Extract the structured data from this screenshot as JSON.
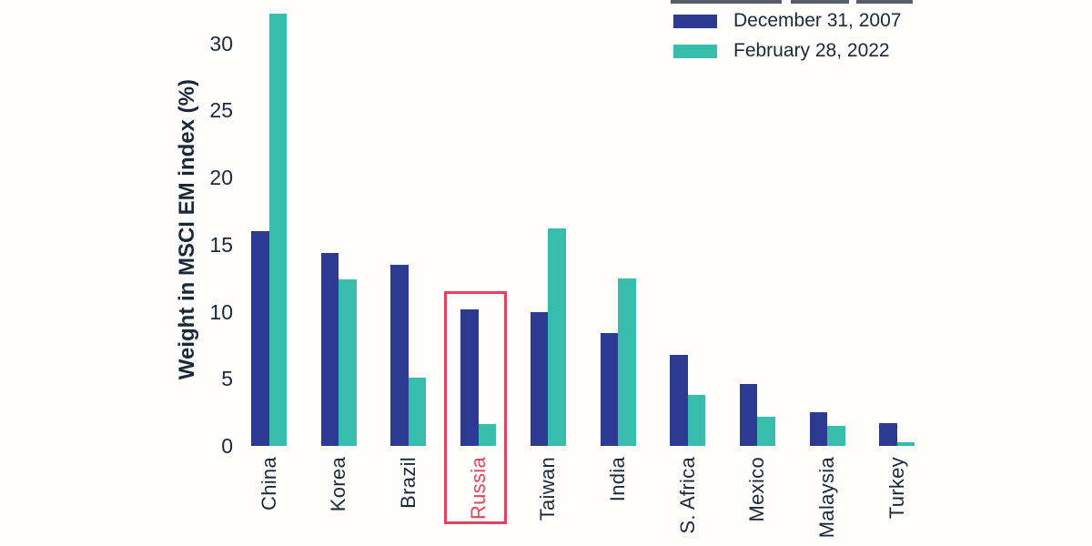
{
  "chart_data": {
    "type": "bar",
    "title": "",
    "xlabel": "",
    "ylabel": "Weight in MSCI EM index (%)",
    "ylim": [
      0,
      33
    ],
    "yticks": [
      0,
      5,
      10,
      15,
      20,
      25,
      30
    ],
    "grid": false,
    "legend_position": "top-right",
    "categories": [
      "China",
      "Korea",
      "Brazil",
      "Russia",
      "Taiwan",
      "India",
      "S. Africa",
      "Mexico",
      "Malaysia",
      "Turkey"
    ],
    "series": [
      {
        "name": "December 31, 2007",
        "color": "#2d3a92",
        "values": [
          16.0,
          14.4,
          13.5,
          10.2,
          10.0,
          8.4,
          6.8,
          4.6,
          2.5,
          1.7
        ]
      },
      {
        "name": "February 28, 2022",
        "color": "#38bcab",
        "values": [
          32.2,
          12.4,
          5.1,
          1.6,
          16.2,
          12.5,
          3.8,
          2.2,
          1.5,
          0.3
        ]
      }
    ],
    "highlight": {
      "category": "Russia",
      "color": "#e0455e"
    }
  },
  "colors": {
    "text": "#1b2937",
    "series_2007": "#2d3a92",
    "series_2022": "#38bcab",
    "highlight": "#e0455e",
    "background": "#fffefd"
  }
}
